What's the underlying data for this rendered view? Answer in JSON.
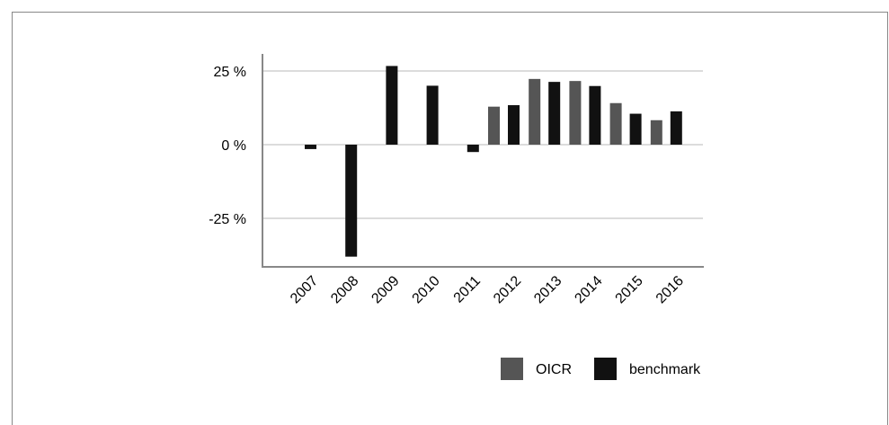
{
  "chart_data": {
    "type": "bar",
    "categories": [
      "2007",
      "2008",
      "2009",
      "2010",
      "2011",
      "2012",
      "2013",
      "2014",
      "2015",
      "2016"
    ],
    "series": [
      {
        "name": "OICR",
        "color": "#555555",
        "values": [
          null,
          null,
          null,
          null,
          null,
          12.9,
          22.3,
          21.6,
          14.1,
          8.3
        ]
      },
      {
        "name": "benchmark",
        "color": "#111111",
        "values": [
          -1.5,
          -38.0,
          26.7,
          20.0,
          -2.5,
          13.4,
          21.3,
          19.9,
          10.5,
          11.3
        ]
      }
    ],
    "y_ticks": [
      {
        "value": 25,
        "label": "25 %"
      },
      {
        "value": 0,
        "label": "0 %"
      },
      {
        "value": -25,
        "label": "-25 %"
      }
    ],
    "ylim": [
      -41,
      30
    ],
    "grid": true,
    "legend_position": "bottom-right",
    "title": "",
    "xlabel": "",
    "ylabel": ""
  }
}
